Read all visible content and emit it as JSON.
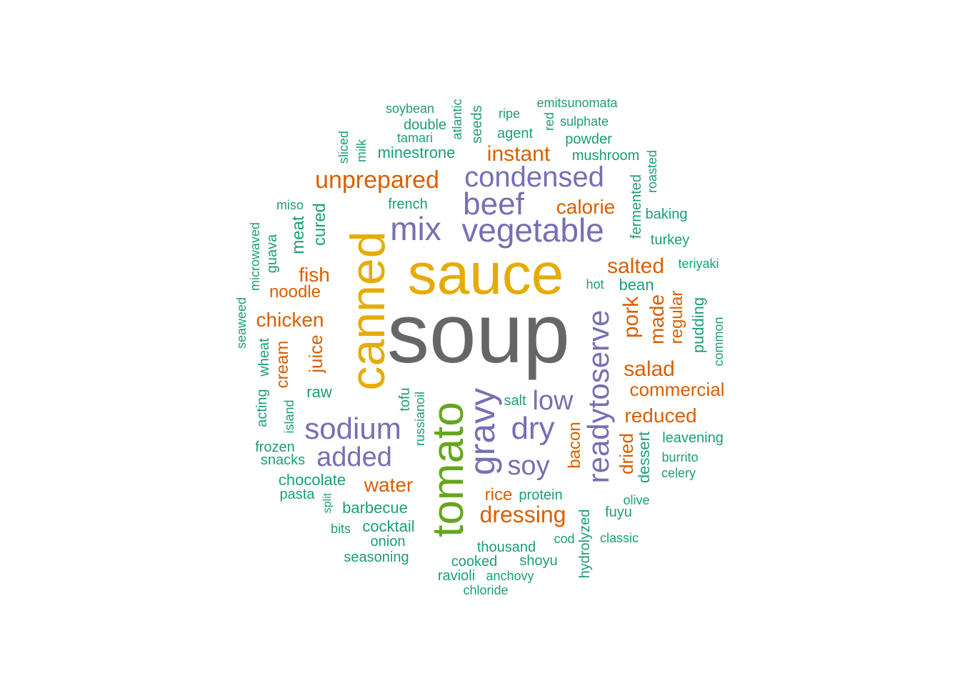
{
  "palette": {
    "grey": "#666666",
    "gold": "#e6ab02",
    "green": "#66a61e",
    "purple": "#7570b3",
    "orange": "#d95f02",
    "teal": "#1b9e77"
  },
  "words": [
    {
      "text": "soup",
      "color": "grey",
      "orientation": "horizontal"
    },
    {
      "text": "sauce",
      "color": "gold",
      "orientation": "horizontal"
    },
    {
      "text": "canned",
      "color": "gold",
      "orientation": "vertical"
    },
    {
      "text": "tomato",
      "color": "green",
      "orientation": "vertical"
    },
    {
      "text": "gravy",
      "color": "purple",
      "orientation": "vertical"
    },
    {
      "text": "readytoserve",
      "color": "purple",
      "orientation": "vertical"
    },
    {
      "text": "vegetable",
      "color": "purple",
      "orientation": "horizontal"
    },
    {
      "text": "beef",
      "color": "purple",
      "orientation": "horizontal"
    },
    {
      "text": "mix",
      "color": "purple",
      "orientation": "horizontal"
    },
    {
      "text": "condensed",
      "color": "purple",
      "orientation": "horizontal"
    },
    {
      "text": "sodium",
      "color": "purple",
      "orientation": "horizontal"
    },
    {
      "text": "dry",
      "color": "purple",
      "orientation": "horizontal"
    },
    {
      "text": "added",
      "color": "purple",
      "orientation": "horizontal"
    },
    {
      "text": "low",
      "color": "purple",
      "orientation": "horizontal"
    },
    {
      "text": "soy",
      "color": "purple",
      "orientation": "horizontal"
    },
    {
      "text": "unprepared",
      "color": "orange",
      "orientation": "horizontal"
    },
    {
      "text": "instant",
      "color": "orange",
      "orientation": "horizontal"
    },
    {
      "text": "calorie",
      "color": "orange",
      "orientation": "horizontal"
    },
    {
      "text": "salted",
      "color": "orange",
      "orientation": "horizontal"
    },
    {
      "text": "salad",
      "color": "orange",
      "orientation": "horizontal"
    },
    {
      "text": "commercial",
      "color": "orange",
      "orientation": "horizontal"
    },
    {
      "text": "reduced",
      "color": "orange",
      "orientation": "horizontal"
    },
    {
      "text": "dressing",
      "color": "orange",
      "orientation": "horizontal"
    },
    {
      "text": "chicken",
      "color": "orange",
      "orientation": "horizontal"
    },
    {
      "text": "fish",
      "color": "orange",
      "orientation": "horizontal"
    },
    {
      "text": "noodle",
      "color": "orange",
      "orientation": "horizontal"
    },
    {
      "text": "water",
      "color": "orange",
      "orientation": "horizontal"
    },
    {
      "text": "rice",
      "color": "orange",
      "orientation": "horizontal"
    },
    {
      "text": "pork",
      "color": "orange",
      "orientation": "vertical"
    },
    {
      "text": "made",
      "color": "orange",
      "orientation": "vertical"
    },
    {
      "text": "regular",
      "color": "orange",
      "orientation": "vertical"
    },
    {
      "text": "dried",
      "color": "orange",
      "orientation": "vertical"
    },
    {
      "text": "bacon",
      "color": "orange",
      "orientation": "vertical"
    },
    {
      "text": "juice",
      "color": "orange",
      "orientation": "vertical"
    },
    {
      "text": "cream",
      "color": "orange",
      "orientation": "vertical"
    },
    {
      "text": "minestrone",
      "color": "teal",
      "orientation": "horizontal"
    },
    {
      "text": "mushroom",
      "color": "teal",
      "orientation": "horizontal"
    },
    {
      "text": "powder",
      "color": "teal",
      "orientation": "horizontal"
    },
    {
      "text": "agent",
      "color": "teal",
      "orientation": "horizontal"
    },
    {
      "text": "double",
      "color": "teal",
      "orientation": "horizontal"
    },
    {
      "text": "soybean",
      "color": "teal",
      "orientation": "horizontal"
    },
    {
      "text": "tamari",
      "color": "teal",
      "orientation": "horizontal"
    },
    {
      "text": "ripe",
      "color": "teal",
      "orientation": "horizontal"
    },
    {
      "text": "emitsunomata",
      "color": "teal",
      "orientation": "horizontal"
    },
    {
      "text": "sulphate",
      "color": "teal",
      "orientation": "horizontal"
    },
    {
      "text": "french",
      "color": "teal",
      "orientation": "horizontal"
    },
    {
      "text": "miso",
      "color": "teal",
      "orientation": "horizontal"
    },
    {
      "text": "baking",
      "color": "teal",
      "orientation": "horizontal"
    },
    {
      "text": "turkey",
      "color": "teal",
      "orientation": "horizontal"
    },
    {
      "text": "teriyaki",
      "color": "teal",
      "orientation": "horizontal"
    },
    {
      "text": "hot",
      "color": "teal",
      "orientation": "horizontal"
    },
    {
      "text": "bean",
      "color": "teal",
      "orientation": "horizontal"
    },
    {
      "text": "raw",
      "color": "teal",
      "orientation": "horizontal"
    },
    {
      "text": "salt",
      "color": "teal",
      "orientation": "horizontal"
    },
    {
      "text": "frozen",
      "color": "teal",
      "orientation": "horizontal"
    },
    {
      "text": "snacks",
      "color": "teal",
      "orientation": "horizontal"
    },
    {
      "text": "chocolate",
      "color": "teal",
      "orientation": "horizontal"
    },
    {
      "text": "pasta",
      "color": "teal",
      "orientation": "horizontal"
    },
    {
      "text": "barbecue",
      "color": "teal",
      "orientation": "horizontal"
    },
    {
      "text": "cocktail",
      "color": "teal",
      "orientation": "horizontal"
    },
    {
      "text": "bits",
      "color": "teal",
      "orientation": "horizontal"
    },
    {
      "text": "onion",
      "color": "teal",
      "orientation": "horizontal"
    },
    {
      "text": "seasoning",
      "color": "teal",
      "orientation": "horizontal"
    },
    {
      "text": "protein",
      "color": "teal",
      "orientation": "horizontal"
    },
    {
      "text": "thousand",
      "color": "teal",
      "orientation": "horizontal"
    },
    {
      "text": "cooked",
      "color": "teal",
      "orientation": "horizontal"
    },
    {
      "text": "shoyu",
      "color": "teal",
      "orientation": "horizontal"
    },
    {
      "text": "ravioli",
      "color": "teal",
      "orientation": "horizontal"
    },
    {
      "text": "anchovy",
      "color": "teal",
      "orientation": "horizontal"
    },
    {
      "text": "chloride",
      "color": "teal",
      "orientation": "horizontal"
    },
    {
      "text": "cod",
      "color": "teal",
      "orientation": "horizontal"
    },
    {
      "text": "classic",
      "color": "teal",
      "orientation": "horizontal"
    },
    {
      "text": "fuyu",
      "color": "teal",
      "orientation": "horizontal"
    },
    {
      "text": "olive",
      "color": "teal",
      "orientation": "horizontal"
    },
    {
      "text": "leavening",
      "color": "teal",
      "orientation": "horizontal"
    },
    {
      "text": "burrito",
      "color": "teal",
      "orientation": "horizontal"
    },
    {
      "text": "celery",
      "color": "teal",
      "orientation": "horizontal"
    },
    {
      "text": "sliced",
      "color": "teal",
      "orientation": "vertical"
    },
    {
      "text": "milk",
      "color": "teal",
      "orientation": "vertical"
    },
    {
      "text": "atlantic",
      "color": "teal",
      "orientation": "vertical"
    },
    {
      "text": "seeds",
      "color": "teal",
      "orientation": "vertical"
    },
    {
      "text": "red",
      "color": "teal",
      "orientation": "vertical"
    },
    {
      "text": "fermented",
      "color": "teal",
      "orientation": "vertical"
    },
    {
      "text": "roasted",
      "color": "teal",
      "orientation": "vertical"
    },
    {
      "text": "meat",
      "color": "teal",
      "orientation": "vertical"
    },
    {
      "text": "cured",
      "color": "teal",
      "orientation": "vertical"
    },
    {
      "text": "microwaved",
      "color": "teal",
      "orientation": "vertical"
    },
    {
      "text": "guava",
      "color": "teal",
      "orientation": "vertical"
    },
    {
      "text": "seaweed",
      "color": "teal",
      "orientation": "vertical"
    },
    {
      "text": "wheat",
      "color": "teal",
      "orientation": "vertical"
    },
    {
      "text": "acting",
      "color": "teal",
      "orientation": "vertical"
    },
    {
      "text": "island",
      "color": "teal",
      "orientation": "vertical"
    },
    {
      "text": "tofu",
      "color": "teal",
      "orientation": "vertical"
    },
    {
      "text": "russianoil",
      "color": "teal",
      "orientation": "vertical"
    },
    {
      "text": "split",
      "color": "teal",
      "orientation": "vertical"
    },
    {
      "text": "pudding",
      "color": "teal",
      "orientation": "vertical"
    },
    {
      "text": "common",
      "color": "teal",
      "orientation": "vertical"
    },
    {
      "text": "dessert",
      "color": "teal",
      "orientation": "vertical"
    },
    {
      "text": "hydrolyzed",
      "color": "teal",
      "orientation": "vertical"
    }
  ]
}
